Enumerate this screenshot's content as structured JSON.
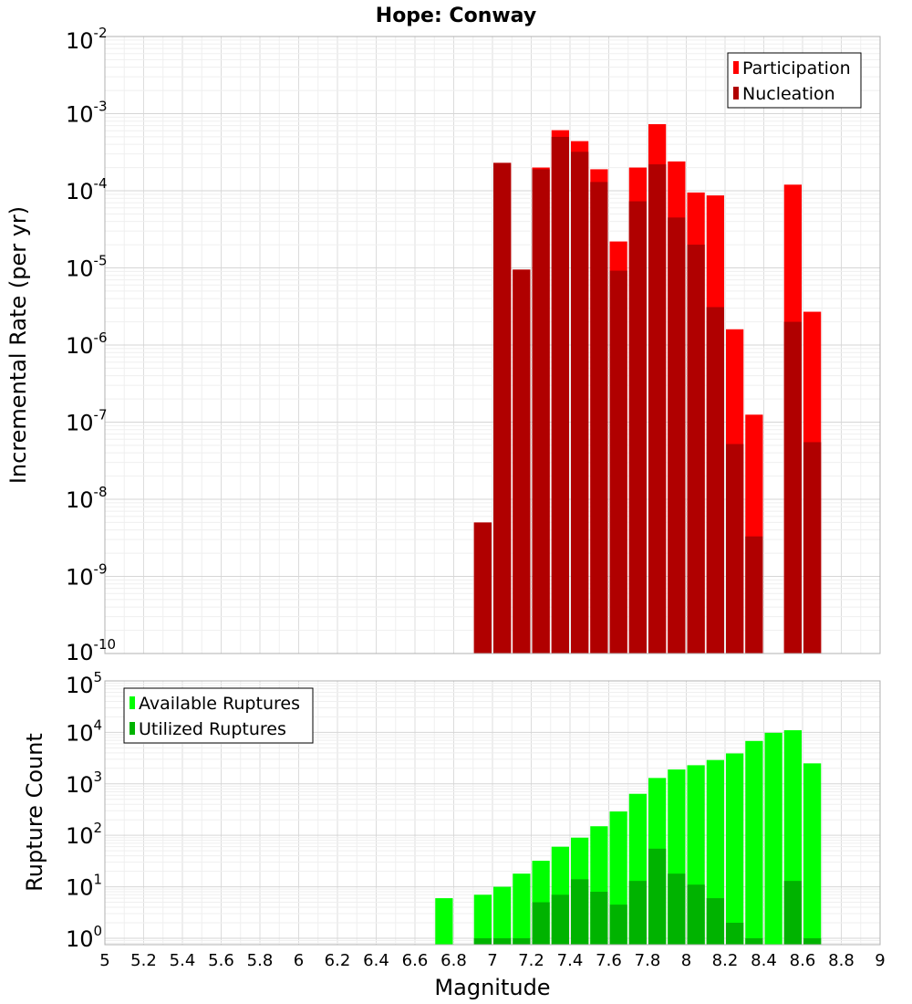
{
  "chart_data": [
    {
      "type": "bar",
      "title": "Hope: Conway",
      "xlabel": "",
      "ylabel": "Incremental Rate (per yr)",
      "xlim": [
        5,
        9
      ],
      "ylim": [
        1e-10,
        0.01
      ],
      "yscale": "log",
      "bar_width": 0.1,
      "grid": true,
      "legend_position": "top-right",
      "colors": {
        "Participation": "#ff0000",
        "Nucleation": "#b00000"
      },
      "x": [
        6.95,
        7.05,
        7.15,
        7.25,
        7.35,
        7.45,
        7.55,
        7.65,
        7.75,
        7.85,
        7.95,
        8.05,
        8.15,
        8.25,
        8.35,
        8.45,
        8.55,
        8.65
      ],
      "series": [
        {
          "name": "Participation",
          "values": [
            5e-09,
            0.00023,
            9.5e-06,
            0.0002,
            0.00061,
            0.00044,
            0.00019,
            2.2e-05,
            0.0002,
            0.00073,
            0.00024,
            9.5e-05,
            8.7e-05,
            1.6e-06,
            1.25e-07,
            null,
            0.00012,
            2.7e-06
          ]
        },
        {
          "name": "Nucleation",
          "values": [
            5e-09,
            0.00023,
            9.5e-06,
            0.00019,
            0.0005,
            0.00032,
            0.00013,
            9.2e-06,
            7.3e-05,
            0.00022,
            4.5e-05,
            2e-05,
            3.1e-06,
            5.2e-08,
            3.3e-09,
            null,
            2e-06,
            5.5e-08
          ]
        }
      ]
    },
    {
      "type": "bar",
      "title": "",
      "xlabel": "Magnitude",
      "ylabel": "Rupture Count",
      "xlim": [
        5,
        9
      ],
      "ylim": [
        0.75,
        100000.0
      ],
      "yscale": "log",
      "bar_width": 0.1,
      "grid": true,
      "legend_position": "top-left",
      "colors": {
        "Available Ruptures": "#00ff00",
        "Utilized Ruptures": "#00b300"
      },
      "x": [
        6.75,
        6.95,
        7.05,
        7.15,
        7.25,
        7.35,
        7.45,
        7.55,
        7.65,
        7.75,
        7.85,
        7.95,
        8.05,
        8.15,
        8.25,
        8.35,
        8.45,
        8.55,
        8.65
      ],
      "series": [
        {
          "name": "Available Ruptures",
          "values": [
            6,
            7,
            10,
            18,
            32,
            60,
            90,
            150,
            290,
            640,
            1300,
            1900,
            2300,
            2900,
            3900,
            6800,
            9800,
            11000,
            2500
          ]
        },
        {
          "name": "Utilized Ruptures",
          "values": [
            null,
            1,
            1,
            1,
            5,
            7,
            14,
            8,
            4.5,
            13,
            55,
            18,
            11,
            6,
            2,
            1,
            null,
            13,
            1
          ]
        }
      ]
    }
  ],
  "x_ticks": [
    "5",
    "5.2",
    "5.4",
    "5.6",
    "5.8",
    "6",
    "6.2",
    "6.4",
    "6.6",
    "6.8",
    "7",
    "7.2",
    "7.4",
    "7.6",
    "7.8",
    "8",
    "8.2",
    "8.4",
    "8.6",
    "8.8",
    "9"
  ],
  "top_y_ticks": [
    {
      "base": "10",
      "exp": "-2"
    },
    {
      "base": "10",
      "exp": "-3"
    },
    {
      "base": "10",
      "exp": "-4"
    },
    {
      "base": "10",
      "exp": "-5"
    },
    {
      "base": "10",
      "exp": "-6"
    },
    {
      "base": "10",
      "exp": "-7"
    },
    {
      "base": "10",
      "exp": "-8"
    },
    {
      "base": "10",
      "exp": "-9"
    },
    {
      "base": "10",
      "exp": "-10"
    }
  ],
  "bottom_y_ticks": [
    {
      "base": "10",
      "exp": "5"
    },
    {
      "base": "10",
      "exp": "4"
    },
    {
      "base": "10",
      "exp": "3"
    },
    {
      "base": "10",
      "exp": "2"
    },
    {
      "base": "10",
      "exp": "1"
    },
    {
      "base": "10",
      "exp": "0"
    }
  ]
}
